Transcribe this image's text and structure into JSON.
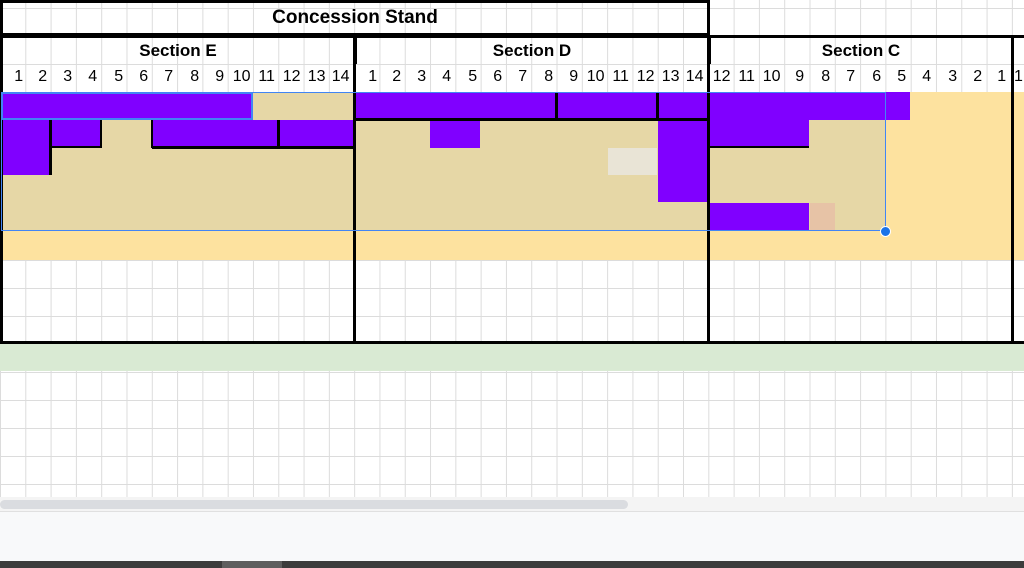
{
  "sheet": {
    "title": "Concession Stand",
    "sections": [
      {
        "label": "Section E",
        "seats": [
          "1",
          "2",
          "3",
          "4",
          "5",
          "6",
          "7",
          "8",
          "9",
          "10",
          "11",
          "12",
          "13",
          "14"
        ]
      },
      {
        "label": "Section D",
        "seats": [
          "1",
          "2",
          "3",
          "4",
          "5",
          "6",
          "7",
          "8",
          "9",
          "10",
          "11",
          "12",
          "13",
          "14"
        ]
      },
      {
        "label": "Section C",
        "seats": [
          "12",
          "11",
          "10",
          "9",
          "8",
          "7",
          "6",
          "5",
          "4",
          "3",
          "2",
          "1"
        ]
      }
    ],
    "partial_next_seat": "1"
  },
  "colors": {
    "booked": "#8000ff",
    "available": "#e6d7a6",
    "highlight": "#fde29f",
    "muted": "#e9e4d6",
    "pending": "#e7c3a6",
    "band": "#d9ead3",
    "selection": "#4285f4"
  }
}
